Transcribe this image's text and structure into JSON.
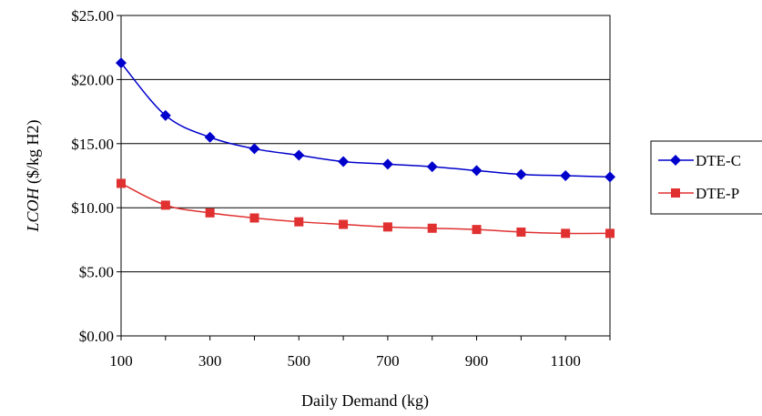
{
  "chart_data": {
    "type": "line",
    "xlabel": "Daily Demand (kg)",
    "ylabel_italic": "LCOH",
    "ylabel_rest": " ($/kg H2)",
    "x": [
      100,
      200,
      300,
      400,
      500,
      600,
      700,
      800,
      900,
      1000,
      1100,
      1200
    ],
    "xlim": [
      100,
      1200
    ],
    "xticks": [
      100,
      300,
      500,
      700,
      900,
      1100
    ],
    "xtick_labels": [
      "100",
      "300",
      "500",
      "700",
      "900",
      "1100"
    ],
    "ylim": [
      0,
      25
    ],
    "yticks": [
      0,
      5,
      10,
      15,
      20,
      25
    ],
    "ytick_labels": [
      "$0.00",
      "$5.00",
      "$10.00",
      "$15.00",
      "$20.00",
      "$25.00"
    ],
    "grid": "horizontal",
    "legend_position": "right",
    "series": [
      {
        "name": "DTE-C",
        "color": "#0000cc",
        "marker": "diamond",
        "values": [
          21.3,
          17.2,
          15.5,
          14.6,
          14.1,
          13.6,
          13.4,
          13.2,
          12.9,
          12.6,
          12.5,
          12.4
        ]
      },
      {
        "name": "DTE-P",
        "color": "#e03030",
        "marker": "square",
        "values": [
          11.9,
          10.2,
          9.6,
          9.2,
          8.9,
          8.7,
          8.5,
          8.4,
          8.3,
          8.1,
          8.0,
          8.0
        ]
      }
    ]
  }
}
